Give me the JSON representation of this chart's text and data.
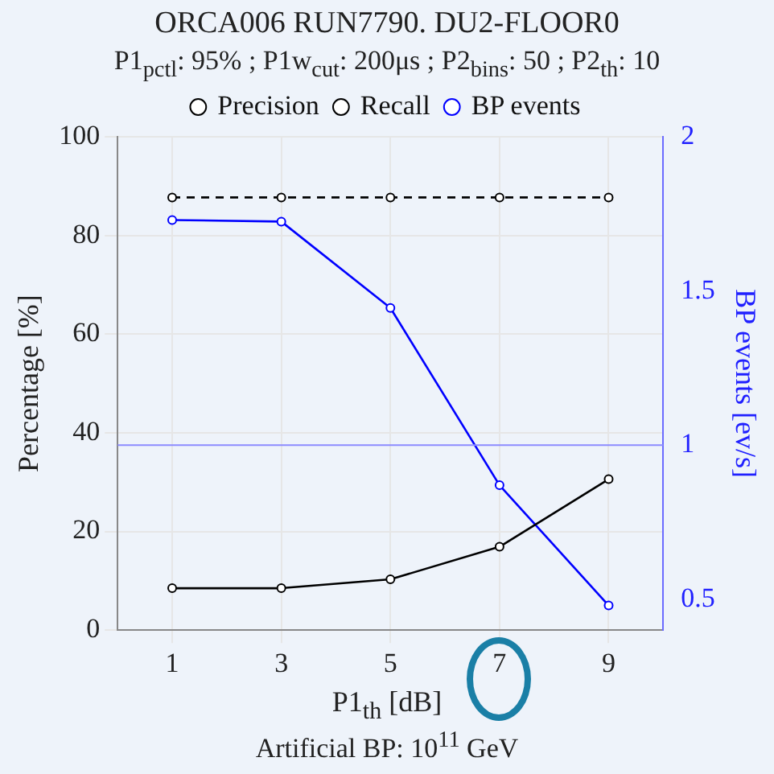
{
  "chart_data": {
    "type": "line",
    "title": "ORCA006 RUN7790. DU2-FLOOR0",
    "subtitle": "P1$_{pctl}$: 95% ; P1w$_{cut}$: 200μs ; P2$_{bins}$: 50 ; P2$_{th}$: 10",
    "xlabel": "P1$_{th}$ [dB]",
    "ylabel": "Percentage [%]",
    "y2label": "BP events [ev/s]",
    "annotations": [
      "Artificial BP: 10$^{11}$ GeV"
    ],
    "x": [
      1,
      3,
      5,
      7,
      9
    ],
    "series": [
      {
        "name": "Precision",
        "color": "#000000",
        "values": [
          8.5,
          8.5,
          10.3,
          16.9,
          30.6
        ]
      },
      {
        "name": "Recall",
        "color": "#000000",
        "values": [
          87.7,
          87.7,
          87.7,
          87.7,
          87.7
        ],
        "line_style": "dashed"
      },
      {
        "name": "BP events",
        "color": "#0000ff",
        "values": [
          1.73,
          1.725,
          1.445,
          0.87,
          0.48
        ],
        "axis": "y2"
      }
    ],
    "xlim": [
      0,
      10
    ],
    "xticks": [
      1,
      3,
      5,
      7,
      9
    ],
    "ylim": [
      0,
      100
    ],
    "yticks": [
      0,
      20,
      40,
      60,
      80,
      100
    ],
    "y2lim": [
      0.4,
      2
    ],
    "y2ticks": [
      0.5,
      1,
      1.5,
      2
    ],
    "ref_lines": [
      {
        "axis": "y2",
        "value": 1,
        "color": "#8c8cff"
      }
    ],
    "grid": true,
    "legend": "top",
    "marker": "circle",
    "line_style": "solid"
  }
}
